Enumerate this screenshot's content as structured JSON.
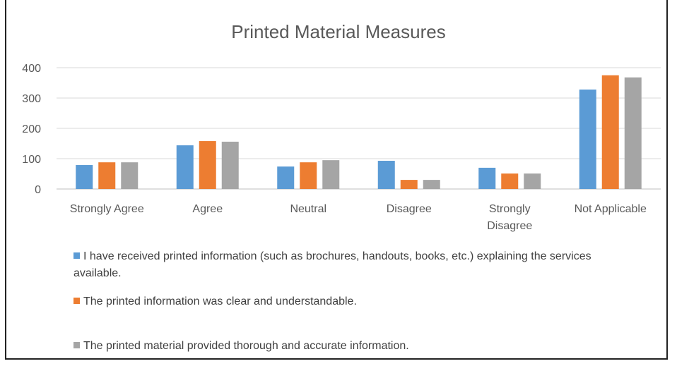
{
  "chart_data": {
    "type": "bar",
    "title": "Printed Material Measures",
    "categories": [
      "Strongly Agree",
      "Agree",
      "Neutral",
      "Disagree",
      "Strongly Disagree",
      "Not Applicable"
    ],
    "series": [
      {
        "name": "I have received printed information (such as brochures, handouts, books, etc.) explaining the services available.",
        "color": "#5b9bd5",
        "values": [
          79,
          144,
          74,
          93,
          70,
          328
        ]
      },
      {
        "name": "The printed information was clear and understandable.",
        "color": "#ed7d31",
        "values": [
          88,
          158,
          88,
          30,
          51,
          375
        ]
      },
      {
        "name": "The printed material provided thorough and accurate information.",
        "color": "#a5a5a5",
        "values": [
          88,
          156,
          95,
          30,
          51,
          368
        ]
      }
    ],
    "ylim": [
      0,
      400
    ],
    "yticks": [
      0,
      100,
      200,
      300,
      400
    ],
    "grid": true,
    "legend_position": "bottom"
  }
}
